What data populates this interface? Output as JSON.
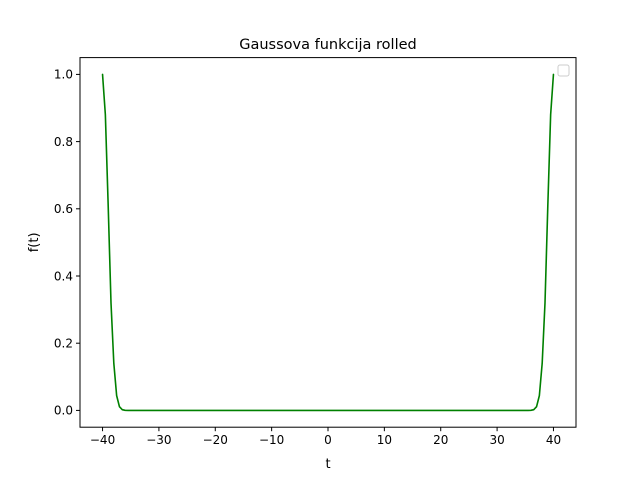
{
  "chart_data": {
    "type": "line",
    "title": "Gaussova funkcija rolled",
    "xlabel": "t",
    "ylabel": "f(t)",
    "xlim": [
      -44,
      44
    ],
    "ylim": [
      -0.05,
      1.05
    ],
    "xticks": [
      -40,
      -30,
      -20,
      -10,
      0,
      10,
      20,
      30,
      40
    ],
    "xtick_labels": [
      "−40",
      "−30",
      "−20",
      "−10",
      "0",
      "10",
      "20",
      "30",
      "40"
    ],
    "yticks": [
      0.0,
      0.2,
      0.4,
      0.6,
      0.8,
      1.0
    ],
    "ytick_labels": [
      "0.0",
      "0.2",
      "0.4",
      "0.6",
      "0.8",
      "1.0"
    ],
    "grid": false,
    "legend": {
      "placement": "top-right",
      "entries": []
    },
    "series": [
      {
        "color": "#008000",
        "x": [
          -40,
          -39.5,
          -39,
          -38.5,
          -38,
          -37.5,
          -37,
          -36.5,
          -36,
          -35.5,
          -35,
          0,
          35,
          35.5,
          36,
          36.5,
          37,
          37.5,
          38,
          38.5,
          39,
          39.5,
          40
        ],
        "y": [
          1.0,
          0.88,
          0.61,
          0.32,
          0.14,
          0.044,
          0.011,
          0.0022,
          0.0003,
          0.0,
          0.0,
          0.0,
          0.0,
          0.0,
          0.0003,
          0.0022,
          0.011,
          0.044,
          0.14,
          0.32,
          0.61,
          0.88,
          1.0
        ]
      }
    ]
  }
}
